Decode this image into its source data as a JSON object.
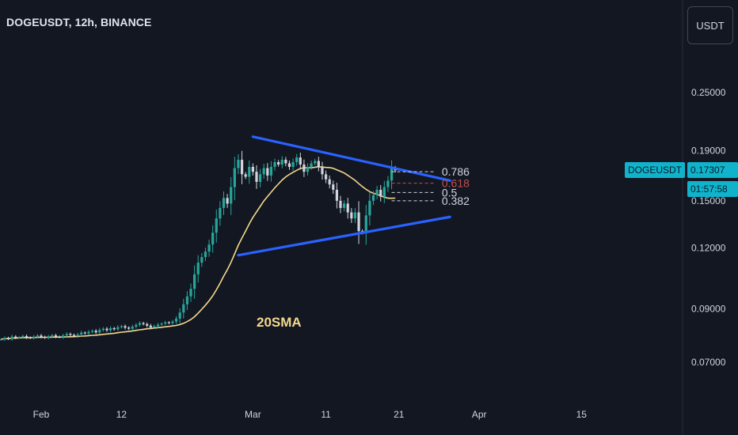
{
  "header": {
    "symbol_title": "DOGEUSDT, 12h, BINANCE"
  },
  "price_scale": {
    "currency_label": "USDT"
  },
  "last_price": {
    "symbol": "DOGEUSDT",
    "value": "0.17307",
    "countdown": "01:57:58",
    "color": "#0fb4cc"
  },
  "colors": {
    "up": "#26a69a",
    "down": "#d1d4dc",
    "sma": "#f5d88b",
    "trendline": "#2962ff",
    "background": "#131722"
  },
  "annotations": {
    "sma_label": "20SMA"
  },
  "chart_data": {
    "type": "candlestick",
    "title": "DOGEUSDT, 12h, BINANCE",
    "y_scale": "log",
    "y_tick_labels": [
      "0.25000",
      "0.19000",
      "0.15000",
      "0.12000",
      "0.09000",
      "0.07000"
    ],
    "x_tick_labels": [
      "Feb",
      "12",
      "Mar",
      "11",
      "21",
      "Apr",
      "15"
    ],
    "last_price": 0.17307,
    "fib_levels": [
      {
        "label": "0.786",
        "price": 0.172
      },
      {
        "label": "0.618",
        "price": 0.163
      },
      {
        "label": "0.5",
        "price": 0.156
      },
      {
        "label": "0.382",
        "price": 0.15
      }
    ],
    "trendlines": [
      {
        "name": "upper",
        "from": {
          "date": "2024-03-01",
          "price": 0.203
        },
        "to": {
          "date": "2024-03-28",
          "price": 0.165
        }
      },
      {
        "name": "lower",
        "from": {
          "date": "2024-02-28",
          "price": 0.116
        },
        "to": {
          "date": "2024-03-28",
          "price": 0.139
        }
      }
    ],
    "sma_period": 20,
    "candle_closes": [
      0.078,
      0.0785,
      0.0782,
      0.079,
      0.0786,
      0.0788,
      0.0792,
      0.0787,
      0.0785,
      0.079,
      0.0794,
      0.0789,
      0.0786,
      0.0791,
      0.0795,
      0.079,
      0.0788,
      0.0794,
      0.08,
      0.0796,
      0.0792,
      0.0798,
      0.0805,
      0.0802,
      0.0808,
      0.0812,
      0.0806,
      0.0815,
      0.082,
      0.0814,
      0.0822,
      0.0818,
      0.0826,
      0.083,
      0.0824,
      0.082,
      0.0828,
      0.0835,
      0.0842,
      0.0838,
      0.0832,
      0.0825,
      0.083,
      0.0836,
      0.084,
      0.0845,
      0.0842,
      0.0848,
      0.086,
      0.0885,
      0.092,
      0.0955,
      0.099,
      0.106,
      0.112,
      0.115,
      0.118,
      0.122,
      0.129,
      0.138,
      0.145,
      0.152,
      0.148,
      0.16,
      0.175,
      0.182,
      0.17,
      0.168,
      0.176,
      0.172,
      0.164,
      0.17,
      0.175,
      0.169,
      0.176,
      0.18,
      0.178,
      0.182,
      0.179,
      0.176,
      0.18,
      0.184,
      0.178,
      0.172,
      0.176,
      0.179,
      0.181,
      0.176,
      0.17,
      0.166,
      0.162,
      0.158,
      0.15,
      0.145,
      0.148,
      0.142,
      0.138,
      0.142,
      0.13,
      0.129,
      0.14,
      0.15,
      0.154,
      0.158,
      0.153,
      0.16,
      0.165,
      0.175,
      0.1731
    ]
  }
}
